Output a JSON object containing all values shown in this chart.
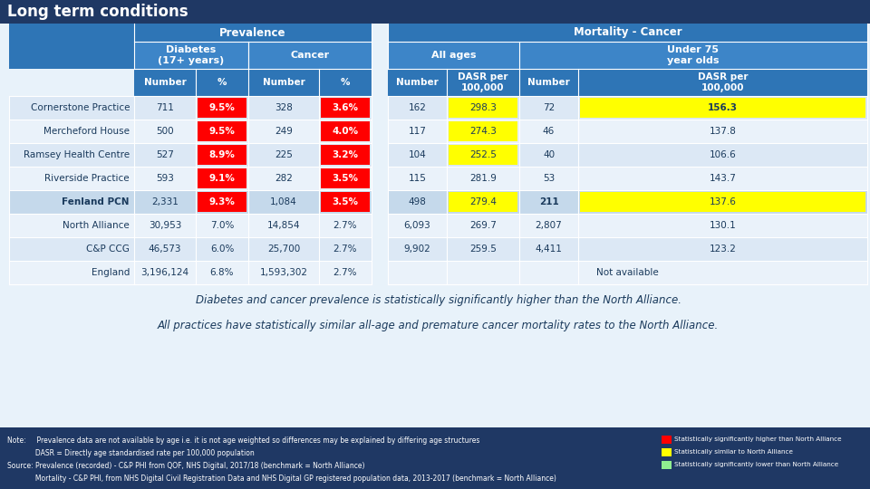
{
  "title": "Long term conditions",
  "rows": [
    {
      "name": "Cornerstone Practice",
      "diab_num": "711",
      "diab_pct": "9.5%",
      "diab_pct_red": true,
      "canc_num": "328",
      "canc_pct": "3.6%",
      "canc_pct_red": true,
      "mort_all_num": "162",
      "mort_all_dasr": "298.3",
      "mort_all_dasr_yellow": true,
      "mort_u75_num": "72",
      "mort_u75_dasr": "156.3",
      "mort_u75_dasr_yellow": true,
      "mort_u75_dasr_bold": true,
      "row_type": "practice"
    },
    {
      "name": "Mercheford House",
      "diab_num": "500",
      "diab_pct": "9.5%",
      "diab_pct_red": true,
      "canc_num": "249",
      "canc_pct": "4.0%",
      "canc_pct_red": true,
      "mort_all_num": "117",
      "mort_all_dasr": "274.3",
      "mort_all_dasr_yellow": true,
      "mort_u75_num": "46",
      "mort_u75_dasr": "137.8",
      "mort_u75_dasr_yellow": false,
      "mort_u75_dasr_bold": false,
      "row_type": "practice"
    },
    {
      "name": "Ramsey Health Centre",
      "diab_num": "527",
      "diab_pct": "8.9%",
      "diab_pct_red": true,
      "canc_num": "225",
      "canc_pct": "3.2%",
      "canc_pct_red": true,
      "mort_all_num": "104",
      "mort_all_dasr": "252.5",
      "mort_all_dasr_yellow": true,
      "mort_u75_num": "40",
      "mort_u75_dasr": "106.6",
      "mort_u75_dasr_yellow": false,
      "mort_u75_dasr_bold": false,
      "row_type": "practice"
    },
    {
      "name": "Riverside Practice",
      "diab_num": "593",
      "diab_pct": "9.1%",
      "diab_pct_red": true,
      "canc_num": "282",
      "canc_pct": "3.5%",
      "canc_pct_red": true,
      "mort_all_num": "115",
      "mort_all_dasr": "281.9",
      "mort_all_dasr_yellow": false,
      "mort_u75_num": "53",
      "mort_u75_dasr": "143.7",
      "mort_u75_dasr_yellow": false,
      "mort_u75_dasr_bold": false,
      "row_type": "practice"
    },
    {
      "name": "Fenland PCN",
      "diab_num": "2,331",
      "diab_pct": "9.3%",
      "diab_pct_red": true,
      "canc_num": "1,084",
      "canc_pct": "3.5%",
      "canc_pct_red": true,
      "mort_all_num": "498",
      "mort_all_dasr": "279.4",
      "mort_all_dasr_yellow": true,
      "mort_u75_num": "211",
      "mort_u75_dasr": "137.6",
      "mort_u75_dasr_yellow": true,
      "mort_u75_dasr_bold": false,
      "row_type": "pcn"
    },
    {
      "name": "North Alliance",
      "diab_num": "30,953",
      "diab_pct": "7.0%",
      "diab_pct_red": false,
      "canc_num": "14,854",
      "canc_pct": "2.7%",
      "canc_pct_red": false,
      "mort_all_num": "6,093",
      "mort_all_dasr": "269.7",
      "mort_all_dasr_yellow": false,
      "mort_u75_num": "2,807",
      "mort_u75_dasr": "130.1",
      "mort_u75_dasr_yellow": false,
      "mort_u75_dasr_bold": false,
      "row_type": "benchmark"
    },
    {
      "name": "C&P CCG",
      "diab_num": "46,573",
      "diab_pct": "6.0%",
      "diab_pct_red": false,
      "canc_num": "25,700",
      "canc_pct": "2.7%",
      "canc_pct_red": false,
      "mort_all_num": "9,902",
      "mort_all_dasr": "259.5",
      "mort_all_dasr_yellow": false,
      "mort_u75_num": "4,411",
      "mort_u75_dasr": "123.2",
      "mort_u75_dasr_yellow": false,
      "mort_u75_dasr_bold": false,
      "row_type": "benchmark"
    },
    {
      "name": "England",
      "diab_num": "3,196,124",
      "diab_pct": "6.8%",
      "diab_pct_red": false,
      "canc_num": "1,593,302",
      "canc_pct": "2.7%",
      "canc_pct_red": false,
      "mort_all_num": "",
      "mort_all_dasr": "",
      "mort_all_dasr_yellow": false,
      "mort_u75_num": "",
      "mort_u75_dasr": "",
      "mort_u75_dasr_yellow": false,
      "mort_u75_dasr_bold": false,
      "row_type": "benchmark",
      "not_available_span": true
    }
  ],
  "text1": "Diabetes and cancer prevalence is statistically significantly higher than the North Alliance.",
  "text2": "All practices have statistically similar all-age and premature cancer mortality rates to the North Alliance.",
  "note_line1": "Note:     Prevalence data are not available by age i.e. it is not age weighted so differences may be explained by differing age structures",
  "note_line2": "             DASR = Directly age standardised rate per 100,000 population",
  "note_line3": "Source: Prevalence (recorded) - C&P PHI from QOF, NHS Digital, 2017/18 (benchmark = North Alliance)",
  "note_line4": "             Mortality - C&P PHI, from NHS Digital Civil Registration Data and NHS Digital GP registered population data, 2013-2017 (benchmark = North Alliance)",
  "legend": [
    {
      "color": "#ff0000",
      "label": "Statistically significantly higher than North Alliance"
    },
    {
      "color": "#ffff00",
      "label": "Statistically similar to North Alliance"
    },
    {
      "color": "#90ee90",
      "label": "Statistically significantly lower than North Alliance"
    }
  ],
  "col_bg_dark": "#2e75b6",
  "col_bg_mid": "#3d85c8",
  "title_bg": "#1f3864",
  "row_light": "#dce8f5",
  "row_lighter": "#eaf2fa",
  "row_pcn": "#c5d9eb",
  "row_benchmark_light": "#dce8f5",
  "row_benchmark_lighter": "#eaf2fa",
  "footer_bg": "#1f3864",
  "body_bg": "#e8f2fa",
  "red": "#ff0000",
  "yellow": "#ffff00"
}
